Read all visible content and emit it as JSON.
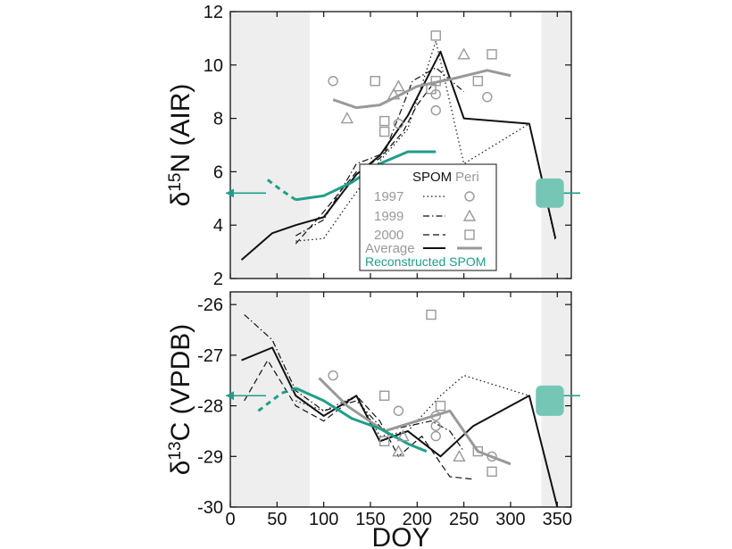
{
  "chart_data": {
    "x_axis": {
      "label": "DOY",
      "range": [
        0,
        365
      ],
      "ticks": [
        0,
        50,
        100,
        150,
        200,
        250,
        300,
        350
      ]
    },
    "legend": {
      "header_spom": "SPOM",
      "header_peri": "Peri",
      "rows": [
        "1997",
        "1999",
        "2000",
        "Average"
      ],
      "reconstructed": "Reconstructed SPOM"
    },
    "colors": {
      "black": "#111111",
      "gray": "#999999",
      "teal": "#1f9e89",
      "band": "#eeeeee",
      "box": "#76c6b5"
    },
    "panels": [
      {
        "id": "d15N",
        "ylabel": "δ15N (AIR)",
        "ylabel_main": "δ",
        "ylabel_sup": "15",
        "ylabel_rest": "N (AIR)",
        "y_range": [
          2,
          12
        ],
        "y_ticks": [
          2,
          4,
          6,
          8,
          10,
          12
        ],
        "shaded": [
          [
            0,
            85
          ],
          [
            333,
            365
          ]
        ],
        "spom_1997": [
          [
            70,
            3.4
          ],
          [
            100,
            3.5
          ],
          [
            130,
            5.0
          ],
          [
            160,
            6.4
          ],
          [
            190,
            7.6
          ],
          [
            220,
            10.9
          ],
          [
            250,
            6.3
          ],
          [
            320,
            7.8
          ],
          [
            348,
            3.4
          ]
        ],
        "spom_1999": [
          [
            70,
            3.6
          ],
          [
            100,
            4.2
          ],
          [
            135,
            6.3
          ],
          [
            165,
            6.7
          ],
          [
            195,
            9.4
          ],
          [
            220,
            9.9
          ],
          [
            250,
            9.0
          ]
        ],
        "spom_2000": [
          [
            70,
            3.3
          ],
          [
            100,
            4.5
          ],
          [
            135,
            6.0
          ],
          [
            160,
            6.5
          ],
          [
            185,
            7.5
          ],
          [
            200,
            8.5
          ],
          [
            215,
            9.2
          ]
        ],
        "spom_average": [
          [
            12,
            2.7
          ],
          [
            45,
            3.7
          ],
          [
            70,
            4.0
          ],
          [
            100,
            4.3
          ],
          [
            135,
            5.9
          ],
          [
            160,
            6.6
          ],
          [
            190,
            8.1
          ],
          [
            225,
            10.5
          ],
          [
            250,
            8.0
          ],
          [
            320,
            7.8
          ],
          [
            348,
            3.5
          ]
        ],
        "peri_average": [
          [
            110,
            8.7
          ],
          [
            135,
            8.4
          ],
          [
            160,
            8.5
          ],
          [
            200,
            9.2
          ],
          [
            240,
            9.5
          ],
          [
            275,
            9.8
          ],
          [
            300,
            9.6
          ]
        ],
        "recon_spom": [
          [
            70,
            4.95
          ],
          [
            100,
            5.1
          ],
          [
            130,
            5.6
          ],
          [
            160,
            6.3
          ],
          [
            190,
            6.75
          ],
          [
            220,
            6.75
          ]
        ],
        "recon_dashed": [
          [
            40,
            5.7
          ],
          [
            55,
            5.3
          ],
          [
            70,
            4.95
          ]
        ],
        "peri_1997": [
          [
            110,
            9.4
          ],
          [
            180,
            7.8
          ],
          [
            220,
            8.9
          ],
          [
            220,
            8.3
          ],
          [
            275,
            8.8
          ]
        ],
        "peri_1999": [
          [
            125,
            8.0
          ],
          [
            175,
            8.9
          ],
          [
            180,
            9.2
          ],
          [
            250,
            10.4
          ]
        ],
        "peri_2000": [
          [
            155,
            9.4
          ],
          [
            165,
            7.9
          ],
          [
            165,
            7.5
          ],
          [
            215,
            9.1
          ],
          [
            220,
            11.1
          ],
          [
            220,
            9.4
          ],
          [
            265,
            9.4
          ],
          [
            280,
            10.4
          ]
        ],
        "arrow_left_y": 5.2,
        "arrow_right_y": 5.2,
        "box": {
          "x0": 327,
          "x1": 357,
          "y0": 4.65,
          "y1": 5.75
        }
      },
      {
        "id": "d13C",
        "ylabel": "δ13C (VPDB)",
        "ylabel_main": "δ",
        "ylabel_sup": "13",
        "ylabel_rest": "C (VPDB)",
        "y_range": [
          -30,
          -25.75
        ],
        "y_ticks": [
          -30,
          -29,
          -28,
          -27,
          -26
        ],
        "shaded": [
          [
            0,
            85
          ],
          [
            333,
            365
          ]
        ],
        "spom_1997": [
          [
            70,
            -27.9
          ],
          [
            100,
            -28.1
          ],
          [
            135,
            -27.8
          ],
          [
            160,
            -28.6
          ],
          [
            190,
            -28.5
          ],
          [
            225,
            -27.8
          ],
          [
            250,
            -27.4
          ],
          [
            320,
            -27.8
          ]
        ],
        "spom_1999": [
          [
            15,
            -26.2
          ],
          [
            45,
            -26.7
          ],
          [
            70,
            -27.7
          ],
          [
            100,
            -28.1
          ],
          [
            135,
            -27.9
          ],
          [
            165,
            -28.5
          ],
          [
            190,
            -28.4
          ],
          [
            215,
            -28.3
          ],
          [
            235,
            -28.5
          ],
          [
            250,
            -28.9
          ]
        ],
        "spom_2000": [
          [
            15,
            -27.9
          ],
          [
            40,
            -27.1
          ],
          [
            70,
            -28.0
          ],
          [
            100,
            -28.3
          ],
          [
            135,
            -27.8
          ],
          [
            160,
            -28.3
          ],
          [
            180,
            -29.0
          ],
          [
            205,
            -28.6
          ],
          [
            235,
            -29.4
          ],
          [
            260,
            -29.45
          ]
        ],
        "spom_average": [
          [
            12,
            -27.1
          ],
          [
            45,
            -26.85
          ],
          [
            70,
            -27.8
          ],
          [
            100,
            -28.2
          ],
          [
            135,
            -27.8
          ],
          [
            160,
            -28.7
          ],
          [
            190,
            -28.5
          ],
          [
            225,
            -29.0
          ],
          [
            260,
            -28.4
          ],
          [
            320,
            -27.8
          ],
          [
            350,
            -30.0
          ]
        ],
        "peri_average": [
          [
            95,
            -27.45
          ],
          [
            125,
            -28.0
          ],
          [
            165,
            -28.5
          ],
          [
            200,
            -28.3
          ],
          [
            235,
            -28.1
          ],
          [
            265,
            -28.9
          ],
          [
            300,
            -29.15
          ]
        ],
        "recon_spom": [
          [
            70,
            -27.65
          ],
          [
            100,
            -27.9
          ],
          [
            130,
            -28.25
          ],
          [
            160,
            -28.45
          ],
          [
            190,
            -28.75
          ],
          [
            210,
            -28.9
          ]
        ],
        "recon_dashed": [
          [
            30,
            -28.1
          ],
          [
            55,
            -27.75
          ],
          [
            70,
            -27.65
          ]
        ],
        "peri_1997": [
          [
            110,
            -27.4
          ],
          [
            180,
            -28.1
          ],
          [
            220,
            -28.2
          ],
          [
            220,
            -28.4
          ],
          [
            220,
            -28.6
          ],
          [
            280,
            -29.0
          ]
        ],
        "peri_1999": [
          [
            180,
            -28.9
          ],
          [
            185,
            -28.6
          ],
          [
            245,
            -29.0
          ]
        ],
        "peri_2000": [
          [
            165,
            -27.8
          ],
          [
            165,
            -28.7
          ],
          [
            225,
            -28.0
          ],
          [
            215,
            -26.2
          ],
          [
            265,
            -28.9
          ],
          [
            280,
            -29.3
          ]
        ],
        "arrow_left_y": -27.8,
        "arrow_right_y": -27.8,
        "box": {
          "x0": 327,
          "x1": 357,
          "y0": -28.2,
          "y1": -27.6
        }
      }
    ]
  }
}
